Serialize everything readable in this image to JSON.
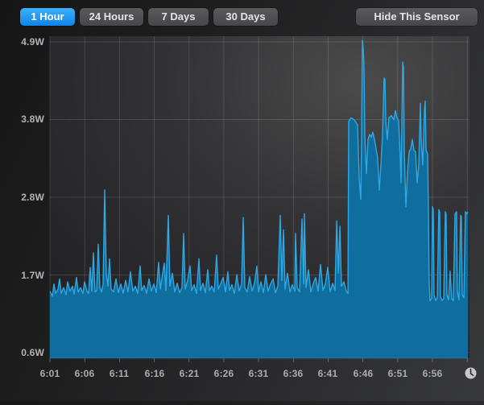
{
  "toolbar": {
    "range_buttons": [
      {
        "label": "1 Hour",
        "selected": true
      },
      {
        "label": "24 Hours",
        "selected": false
      },
      {
        "label": "7 Days",
        "selected": false
      },
      {
        "label": "30 Days",
        "selected": false
      }
    ],
    "hide_button_label": "Hide This Sensor"
  },
  "icons": {
    "axis_end": "clock-icon"
  },
  "colors": {
    "selected_button_blue_top": "#3FB0F8",
    "selected_button_blue_bottom": "#0D85E9",
    "area_fill": "#0F6E9D",
    "area_line": "#2FA7E3",
    "gridline": "rgba(255,255,255,0.13)",
    "axis_label": "#B3B3B5"
  },
  "chart_data": {
    "type": "area",
    "unit": "W",
    "legend": "none",
    "grid": true,
    "y_tick_labels": [
      "4.9W",
      "3.8W",
      "2.8W",
      "1.7W",
      "0.6W"
    ],
    "y_tick_values": [
      4.9,
      3.825,
      2.75,
      1.675,
      0.6
    ],
    "ylim": [
      0.52,
      4.97
    ],
    "x_tick_labels": [
      "6:01",
      "6:06",
      "6:11",
      "6:16",
      "6:21",
      "6:26",
      "6:31",
      "6:36",
      "6:41",
      "6:46",
      "6:51",
      "6:56"
    ],
    "x_tick_minutes": [
      0,
      5,
      10,
      15,
      20,
      25,
      30,
      35,
      40,
      45,
      50,
      55
    ],
    "x_gridline_minutes": [
      0,
      5,
      10,
      15,
      20,
      25,
      30,
      35,
      40,
      45,
      50,
      55,
      60
    ],
    "x_axis": {
      "start_label": "6:01",
      "span_minutes": 60
    },
    "series": [
      {
        "name": "sensor-power-watts",
        "points": [
          [
            0,
            1.45
          ],
          [
            0.35,
            1.38
          ],
          [
            0.58,
            1.55
          ],
          [
            0.81,
            1.42
          ],
          [
            1.16,
            1.48
          ],
          [
            1.39,
            1.62
          ],
          [
            1.62,
            1.42
          ],
          [
            1.97,
            1.5
          ],
          [
            2.32,
            1.4
          ],
          [
            2.55,
            1.58
          ],
          [
            2.89,
            1.45
          ],
          [
            3.24,
            1.52
          ],
          [
            3.47,
            1.41
          ],
          [
            3.82,
            1.64
          ],
          [
            4.05,
            1.44
          ],
          [
            4.4,
            1.5
          ],
          [
            4.75,
            1.42
          ],
          [
            4.98,
            1.58
          ],
          [
            5.33,
            1.45
          ],
          [
            5.56,
            1.42
          ],
          [
            5.79,
            1.78
          ],
          [
            6.02,
            1.45
          ],
          [
            6.25,
            1.98
          ],
          [
            6.48,
            1.44
          ],
          [
            6.72,
            1.46
          ],
          [
            6.95,
            2.1
          ],
          [
            7.18,
            1.5
          ],
          [
            7.41,
            1.44
          ],
          [
            7.64,
            1.55
          ],
          [
            7.87,
            2.85
          ],
          [
            8.1,
            1.7
          ],
          [
            8.34,
            1.52
          ],
          [
            8.57,
            1.9
          ],
          [
            8.8,
            1.48
          ],
          [
            9.15,
            1.44
          ],
          [
            9.49,
            1.62
          ],
          [
            9.84,
            1.43
          ],
          [
            10.19,
            1.55
          ],
          [
            10.54,
            1.42
          ],
          [
            10.88,
            1.6
          ],
          [
            11.23,
            1.44
          ],
          [
            11.58,
            1.72
          ],
          [
            11.93,
            1.45
          ],
          [
            12.27,
            1.52
          ],
          [
            12.62,
            1.42
          ],
          [
            12.97,
            1.8
          ],
          [
            13.2,
            1.46
          ],
          [
            13.55,
            1.53
          ],
          [
            13.89,
            1.42
          ],
          [
            14.24,
            1.62
          ],
          [
            14.59,
            1.45
          ],
          [
            14.94,
            1.55
          ],
          [
            15.28,
            1.43
          ],
          [
            15.63,
            1.85
          ],
          [
            15.86,
            1.48
          ],
          [
            16.21,
            1.7
          ],
          [
            16.44,
            1.84
          ],
          [
            16.67,
            1.46
          ],
          [
            17.02,
            2.5
          ],
          [
            17.25,
            1.52
          ],
          [
            17.6,
            1.7
          ],
          [
            17.95,
            1.44
          ],
          [
            18.29,
            1.56
          ],
          [
            18.64,
            1.43
          ],
          [
            18.99,
            1.5
          ],
          [
            19.22,
            2.25
          ],
          [
            19.45,
            1.48
          ],
          [
            19.8,
            1.6
          ],
          [
            20.15,
            1.8
          ],
          [
            20.38,
            1.46
          ],
          [
            20.73,
            1.54
          ],
          [
            21.07,
            1.42
          ],
          [
            21.42,
            1.9
          ],
          [
            21.65,
            1.46
          ],
          [
            22,
            1.56
          ],
          [
            22.35,
            1.43
          ],
          [
            22.7,
            1.75
          ],
          [
            22.93,
            1.46
          ],
          [
            23.27,
            1.52
          ],
          [
            23.62,
            1.44
          ],
          [
            23.97,
            1.95
          ],
          [
            24.2,
            1.48
          ],
          [
            24.55,
            1.55
          ],
          [
            24.9,
            1.64
          ],
          [
            25.24,
            1.44
          ],
          [
            25.59,
            1.72
          ],
          [
            25.82,
            1.46
          ],
          [
            26.17,
            1.54
          ],
          [
            26.52,
            1.42
          ],
          [
            26.87,
            1.68
          ],
          [
            27.21,
            1.45
          ],
          [
            27.56,
            1.55
          ],
          [
            27.79,
            2.47
          ],
          [
            28.02,
            1.5
          ],
          [
            28.37,
            1.44
          ],
          [
            28.72,
            1.65
          ],
          [
            29.07,
            1.45
          ],
          [
            29.41,
            1.56
          ],
          [
            29.76,
            1.8
          ],
          [
            29.99,
            1.44
          ],
          [
            30.34,
            1.58
          ],
          [
            30.69,
            1.43
          ],
          [
            31.03,
            1.68
          ],
          [
            31.38,
            1.45
          ],
          [
            31.73,
            1.55
          ],
          [
            32.08,
            1.62
          ],
          [
            32.42,
            1.43
          ],
          [
            32.77,
            1.52
          ],
          [
            33.12,
            2.5
          ],
          [
            33.35,
            1.6
          ],
          [
            33.58,
            2.3
          ],
          [
            33.81,
            1.48
          ],
          [
            34.16,
            1.7
          ],
          [
            34.51,
            1.44
          ],
          [
            34.85,
            1.54
          ],
          [
            35.2,
            1.45
          ],
          [
            35.32,
            2.25
          ],
          [
            35.55,
            1.5
          ],
          [
            35.9,
            1.44
          ],
          [
            36.24,
            2.45
          ],
          [
            36.48,
            1.55
          ],
          [
            36.59,
            2.52
          ],
          [
            36.82,
            1.5
          ],
          [
            37.17,
            1.75
          ],
          [
            37.52,
            1.44
          ],
          [
            37.87,
            1.56
          ],
          [
            38.21,
            1.64
          ],
          [
            38.56,
            1.45
          ],
          [
            38.91,
            1.82
          ],
          [
            39.26,
            1.46
          ],
          [
            39.6,
            1.55
          ],
          [
            39.95,
            1.78
          ],
          [
            40.3,
            1.44
          ],
          [
            40.65,
            1.56
          ],
          [
            40.99,
            1.46
          ],
          [
            41.23,
            2.42
          ],
          [
            41.46,
            1.7
          ],
          [
            41.69,
            2.35
          ],
          [
            41.92,
            1.52
          ],
          [
            42.27,
            1.58
          ],
          [
            42.61,
            1.45
          ],
          [
            42.85,
            1.42
          ],
          [
            42.96,
            3.8
          ],
          [
            43.31,
            3.85
          ],
          [
            43.77,
            3.82
          ],
          [
            44.23,
            3.75
          ],
          [
            44.47,
            3.0
          ],
          [
            44.7,
            2.72
          ],
          [
            44.81,
            3.6
          ],
          [
            44.93,
            4.92
          ],
          [
            45.04,
            4.8
          ],
          [
            45.16,
            4.55
          ],
          [
            45.27,
            3.6
          ],
          [
            45.5,
            3.08
          ],
          [
            45.74,
            3.55
          ],
          [
            45.97,
            3.62
          ],
          [
            46.2,
            3.58
          ],
          [
            46.43,
            3.65
          ],
          [
            46.66,
            3.55
          ],
          [
            46.89,
            3.42
          ],
          [
            47.12,
            3.3
          ],
          [
            47.36,
            2.85
          ],
          [
            47.59,
            3.2
          ],
          [
            47.82,
            3.62
          ],
          [
            48.05,
            4.4
          ],
          [
            48.17,
            4.38
          ],
          [
            48.28,
            3.8
          ],
          [
            48.51,
            3.55
          ],
          [
            48.75,
            3.85
          ],
          [
            49.09,
            3.88
          ],
          [
            49.44,
            3.82
          ],
          [
            49.67,
            3.95
          ],
          [
            49.9,
            3.85
          ],
          [
            50.14,
            3.8
          ],
          [
            50.37,
            3.3
          ],
          [
            50.48,
            2.95
          ],
          [
            50.72,
            4.62
          ],
          [
            50.83,
            4.55
          ],
          [
            50.95,
            3.4
          ],
          [
            51.18,
            2.62
          ],
          [
            51.41,
            3.1
          ],
          [
            51.64,
            3.38
          ],
          [
            51.87,
            3.42
          ],
          [
            52.1,
            3.55
          ],
          [
            52.34,
            3.4
          ],
          [
            52.57,
            3.38
          ],
          [
            52.8,
            2.95
          ],
          [
            53.03,
            3.2
          ],
          [
            53.26,
            4.05
          ],
          [
            53.38,
            3.55
          ],
          [
            53.61,
            3.2
          ],
          [
            53.84,
            3.95
          ],
          [
            53.96,
            4.08
          ],
          [
            54.07,
            3.4
          ],
          [
            54.3,
            3.35
          ],
          [
            54.42,
            2.6
          ],
          [
            54.53,
            1.6
          ],
          [
            54.65,
            1.32
          ],
          [
            54.88,
            1.35
          ],
          [
            55.0,
            2.62
          ],
          [
            55.11,
            2.58
          ],
          [
            55.23,
            1.4
          ],
          [
            55.46,
            1.32
          ],
          [
            55.69,
            1.36
          ],
          [
            55.92,
            2.58
          ],
          [
            56.04,
            2.55
          ],
          [
            56.15,
            1.38
          ],
          [
            56.38,
            1.32
          ],
          [
            56.62,
            1.35
          ],
          [
            56.85,
            2.55
          ],
          [
            56.96,
            2.52
          ],
          [
            57.08,
            1.4
          ],
          [
            57.31,
            1.33
          ],
          [
            57.54,
            1.73
          ],
          [
            57.77,
            1.35
          ],
          [
            58.0,
            1.32
          ],
          [
            58.24,
            2.52
          ],
          [
            58.47,
            2.55
          ],
          [
            58.58,
            1.45
          ],
          [
            58.81,
            1.33
          ],
          [
            59.05,
            2.5
          ],
          [
            59.16,
            2.48
          ],
          [
            59.28,
            1.4
          ],
          [
            59.51,
            1.36
          ],
          [
            59.74,
            2.55
          ],
          [
            59.97,
            2.52
          ],
          [
            60.09,
            2.55
          ]
        ]
      }
    ]
  }
}
